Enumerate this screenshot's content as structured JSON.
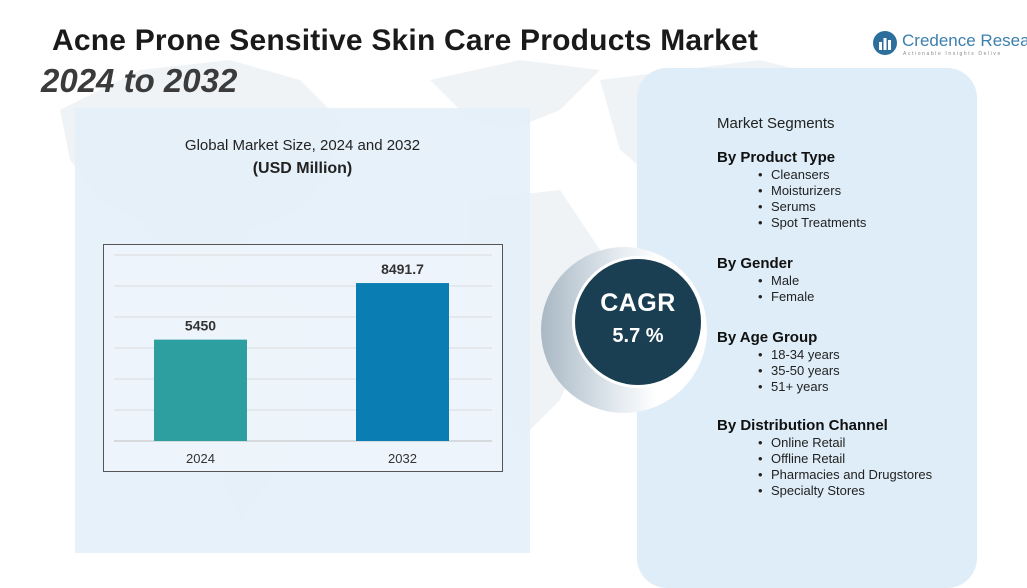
{
  "header": {
    "title": "Acne Prone Sensitive Skin Care Products Market",
    "subtitle": "2024 to 2032"
  },
  "logo": {
    "name": "Credence Resear",
    "tagline": "Actionable Insights Delive"
  },
  "chart_data": {
    "type": "bar",
    "title": "Global Market Size, 2024 and 2032",
    "unit_label": "(USD Million)",
    "categories": [
      "2024",
      "2032"
    ],
    "values": [
      5450,
      8491.7
    ],
    "value_labels": [
      "5450",
      "8491.7"
    ],
    "colors": [
      "#2e9fa0",
      "#0a7db2"
    ],
    "ylim": [
      0,
      10000
    ],
    "grid": true,
    "legend": "none"
  },
  "cagr": {
    "label": "CAGR",
    "value": "5.7 %"
  },
  "segments": {
    "heading": "Market Segments",
    "groups": [
      {
        "title": "By Product Type",
        "items": [
          "Cleansers",
          "Moisturizers",
          "Serums",
          "Spot Treatments"
        ]
      },
      {
        "title": "By Gender",
        "items": [
          "Male",
          "Female"
        ]
      },
      {
        "title": "By Age Group",
        "items": [
          "18-34 years",
          "35-50 years",
          "51+ years"
        ]
      },
      {
        "title": "By Distribution Channel",
        "items": [
          "Online Retail",
          "Offline Retail",
          "Pharmacies and Drugstores",
          "Specialty Stores"
        ]
      }
    ]
  }
}
